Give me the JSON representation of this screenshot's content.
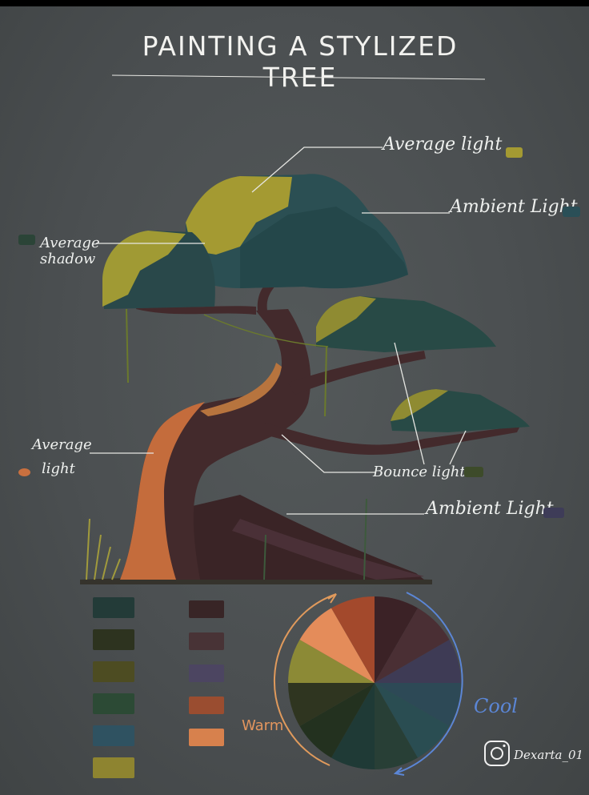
{
  "title": "PAINTING A STYLIZED TREE",
  "labels": {
    "average_light_top": "Average light",
    "ambient_light_top": "Ambient Light",
    "average_shadow_line1": "Average",
    "average_shadow_line2": "shadow",
    "average_light_left_line1": "Average",
    "average_light_left_line2": "light",
    "bounce_light": "Bounce light",
    "ambient_light_bottom": "Ambient Light",
    "warm": "Warm",
    "cool": "Cool"
  },
  "credit": {
    "handle": "Dexarta_01",
    "icon": "instagram-icon"
  },
  "colors": {
    "background": "#4b4f51",
    "average_light": "#a49a32",
    "ambient_light": "#2a4f57",
    "average_shadow": "#2b4437",
    "trunk_light": "#c9703f",
    "bounce_light": "#3d4b2a",
    "ambient_light_purple": "#3e3c58",
    "warm_arrow": "#e09a5c",
    "cool_arrow": "#5b86d6"
  },
  "palette": {
    "left_column": [
      "#233b38",
      "#2d331f",
      "#4d4c22",
      "#2c4a35",
      "#2f5261",
      "#8e8430"
    ],
    "right_column": [
      "#382526",
      "#483336",
      "#4c4561",
      "#9a4d30",
      "#d7814d"
    ]
  },
  "color_wheel": [
    "#3b2226",
    "#4a2f34",
    "#3e3b55",
    "#2d4956",
    "#2a4d52",
    "#283f36",
    "#1f3a36",
    "#23311f",
    "#2f3520",
    "#8c8a36",
    "#e48c5a",
    "#a3492c"
  ]
}
